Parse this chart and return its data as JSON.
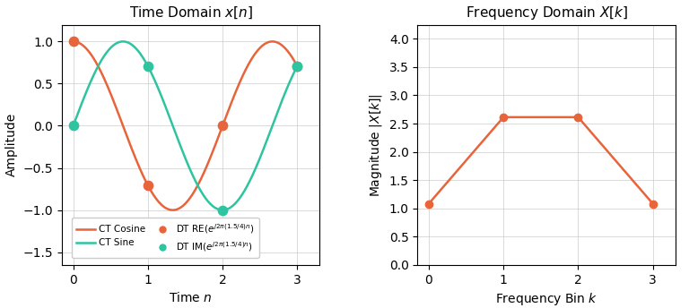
{
  "orange_color": "#E8643A",
  "teal_color": "#2EC4A0",
  "freq": 1.5,
  "N": 4,
  "n_points": 400,
  "dt_n": [
    0,
    1,
    2,
    3
  ],
  "dt_re": [
    1.0,
    -0.7071067811865476,
    0.0,
    0.7071067811865476
  ],
  "dt_im": [
    0.0,
    0.7071067811865476,
    -1.0,
    0.7071067811865476
  ],
  "dft_k": [
    0,
    1,
    2,
    3
  ],
  "dft_mag": [
    1.0823922002923938,
    2.613125929752753,
    2.613125929752753,
    1.0823922002923938
  ],
  "left_title": "Time Domain $x[n]$",
  "right_title": "Frequency Domain $X[k]$",
  "xlabel_left": "Time $n$",
  "xlabel_right": "Frequency Bin $k$",
  "ylabel_left": "Amplitude",
  "ylabel_right": "Magnitude $|X[k]|$",
  "ylim_left": [
    -1.65,
    1.2
  ],
  "ylim_right": [
    0.0,
    4.25
  ],
  "xlim_left": [
    -0.15,
    3.3
  ],
  "xlim_right": [
    -0.15,
    3.3
  ],
  "figsize": [
    7.68,
    3.44
  ],
  "dpi": 100
}
